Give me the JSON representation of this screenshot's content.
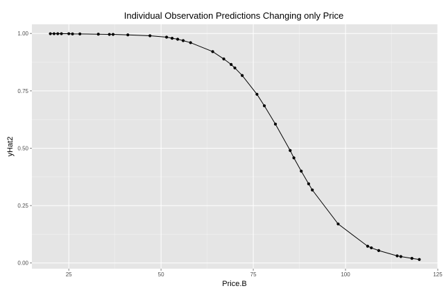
{
  "chart_data": {
    "type": "line",
    "title": "Individual Observation Predictions Changing only Price",
    "xlabel": "Price.B",
    "ylabel": "yHat2",
    "xlim": [
      15,
      125
    ],
    "ylim": [
      -0.025,
      1.04
    ],
    "x_ticks": [
      25,
      50,
      75,
      100,
      125
    ],
    "x_tick_labels": [
      "25",
      "50",
      "75",
      "100",
      "125"
    ],
    "y_ticks": [
      0.0,
      0.25,
      0.5,
      0.75,
      1.0
    ],
    "y_tick_labels": [
      "0.00",
      "0.25",
      "0.50",
      "0.75",
      "1.00"
    ],
    "grid": true,
    "panel_background": "#e5e5e5",
    "grid_color": "#ffffff",
    "line_color": "#000000",
    "point_color": "#000000",
    "points": [
      {
        "x": 20.0,
        "y": 0.999
      },
      {
        "x": 21.0,
        "y": 0.999
      },
      {
        "x": 22.0,
        "y": 0.999
      },
      {
        "x": 23.0,
        "y": 0.999
      },
      {
        "x": 25.0,
        "y": 0.999
      },
      {
        "x": 26.0,
        "y": 0.998
      },
      {
        "x": 28.0,
        "y": 0.998
      },
      {
        "x": 33.0,
        "y": 0.997
      },
      {
        "x": 36.0,
        "y": 0.996
      },
      {
        "x": 37.0,
        "y": 0.996
      },
      {
        "x": 41.0,
        "y": 0.994
      },
      {
        "x": 47.0,
        "y": 0.99
      },
      {
        "x": 51.5,
        "y": 0.984
      },
      {
        "x": 53.0,
        "y": 0.979
      },
      {
        "x": 54.5,
        "y": 0.975
      },
      {
        "x": 56.0,
        "y": 0.969
      },
      {
        "x": 58.0,
        "y": 0.96
      },
      {
        "x": 64.0,
        "y": 0.921
      },
      {
        "x": 67.0,
        "y": 0.889
      },
      {
        "x": 69.0,
        "y": 0.865
      },
      {
        "x": 70.0,
        "y": 0.85
      },
      {
        "x": 72.0,
        "y": 0.817
      },
      {
        "x": 76.0,
        "y": 0.735
      },
      {
        "x": 78.0,
        "y": 0.685
      },
      {
        "x": 81.0,
        "y": 0.605
      },
      {
        "x": 85.0,
        "y": 0.49
      },
      {
        "x": 86.0,
        "y": 0.458
      },
      {
        "x": 88.0,
        "y": 0.4
      },
      {
        "x": 90.0,
        "y": 0.345
      },
      {
        "x": 91.0,
        "y": 0.318
      },
      {
        "x": 98.0,
        "y": 0.17
      },
      {
        "x": 106.0,
        "y": 0.073
      },
      {
        "x": 107.0,
        "y": 0.066
      },
      {
        "x": 109.0,
        "y": 0.054
      },
      {
        "x": 114.0,
        "y": 0.031
      },
      {
        "x": 115.0,
        "y": 0.028
      },
      {
        "x": 118.0,
        "y": 0.02
      },
      {
        "x": 120.0,
        "y": 0.015
      }
    ]
  }
}
